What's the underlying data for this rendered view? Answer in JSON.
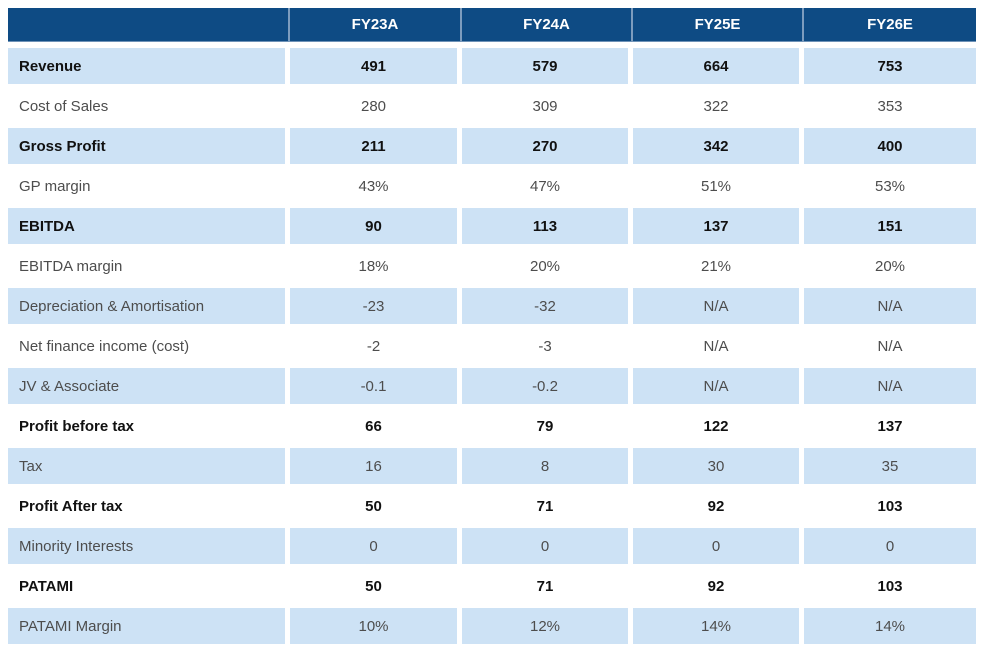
{
  "colors": {
    "header_bg": "#0E4B84",
    "header_text": "#FFFFFF",
    "header_separator": "#7C9CBE",
    "shaded_row_bg": "#CDE2F5",
    "regular_text": "#4D4D4D",
    "bold_text": "#111111",
    "gap_color": "#FFFFFF"
  },
  "chart_data": {
    "type": "table",
    "title": "",
    "columns": [
      "",
      "FY23A",
      "FY24A",
      "FY25E",
      "FY26E"
    ],
    "rows": [
      {
        "label": "Revenue",
        "values": [
          "491",
          "579",
          "664",
          "753"
        ],
        "bold": true,
        "shaded": true
      },
      {
        "label": "Cost of Sales",
        "values": [
          "280",
          "309",
          "322",
          "353"
        ],
        "bold": false,
        "shaded": false
      },
      {
        "label": "Gross Profit",
        "values": [
          "211",
          "270",
          "342",
          "400"
        ],
        "bold": true,
        "shaded": true
      },
      {
        "label": "GP margin",
        "values": [
          "43%",
          "47%",
          "51%",
          "53%"
        ],
        "bold": false,
        "shaded": false
      },
      {
        "label": "EBITDA",
        "values": [
          "90",
          "113",
          "137",
          "151"
        ],
        "bold": true,
        "shaded": true
      },
      {
        "label": "EBITDA margin",
        "values": [
          "18%",
          "20%",
          "21%",
          "20%"
        ],
        "bold": false,
        "shaded": false
      },
      {
        "label": "Depreciation & Amortisation",
        "values": [
          "-23",
          "-32",
          "N/A",
          "N/A"
        ],
        "bold": false,
        "shaded": true
      },
      {
        "label": "Net finance income (cost)",
        "values": [
          "-2",
          "-3",
          "N/A",
          "N/A"
        ],
        "bold": false,
        "shaded": false
      },
      {
        "label": "JV & Associate",
        "values": [
          "-0.1",
          "-0.2",
          "N/A",
          "N/A"
        ],
        "bold": false,
        "shaded": true
      },
      {
        "label": "Profit before tax",
        "values": [
          "66",
          "79",
          "122",
          "137"
        ],
        "bold": true,
        "shaded": false
      },
      {
        "label": "Tax",
        "values": [
          "16",
          "8",
          "30",
          "35"
        ],
        "bold": false,
        "shaded": true
      },
      {
        "label": "Profit After tax",
        "values": [
          "50",
          "71",
          "92",
          "103"
        ],
        "bold": true,
        "shaded": false
      },
      {
        "label": "Minority Interests",
        "values": [
          "0",
          "0",
          "0",
          "0"
        ],
        "bold": false,
        "shaded": true
      },
      {
        "label": "PATAMI",
        "values": [
          "50",
          "71",
          "92",
          "103"
        ],
        "bold": true,
        "shaded": false
      },
      {
        "label": "PATAMI Margin",
        "values": [
          "10%",
          "12%",
          "14%",
          "14%"
        ],
        "bold": false,
        "shaded": true
      }
    ]
  }
}
